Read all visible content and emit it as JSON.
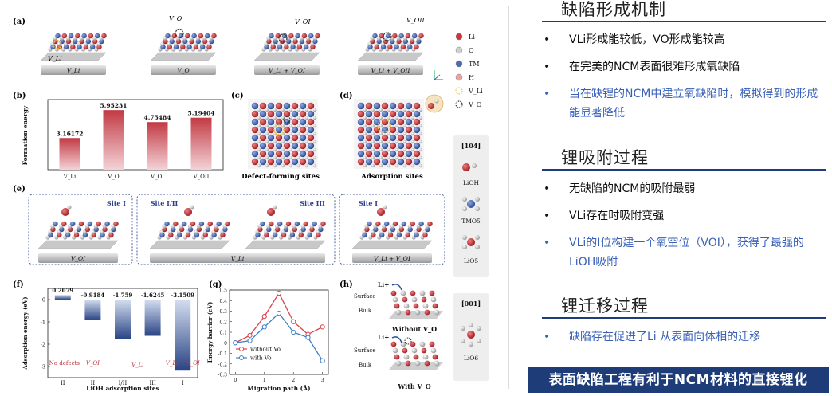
{
  "figure": {
    "panel_labels": [
      "(a)",
      "(b)",
      "(c)",
      "(d)",
      "(e)",
      "(f)",
      "(g)",
      "(h)"
    ],
    "panel_a": {
      "labels": [
        "V_Li",
        "V_O",
        "V_Li + V_OI",
        "V_Li + V_OII"
      ],
      "annotations": [
        "V_Li",
        "V_O",
        "V_OI",
        "V_OII"
      ]
    },
    "legend": [
      {
        "label": "Li",
        "color": "#c8353b"
      },
      {
        "label": "O",
        "color": "#cfcfcf"
      },
      {
        "label": "TM",
        "color": "#4a6bb5"
      },
      {
        "label": "H",
        "color": "#f0a0a0"
      },
      {
        "label": "V_Li",
        "color": "#f0c040"
      },
      {
        "label": "V_O",
        "color": "#333333"
      }
    ],
    "panel_c_title": "Defect-forming sites",
    "panel_d_title": "Adsorption sites",
    "panel_e": {
      "sites": [
        "Site I",
        "Site I/II",
        "Site III",
        "Site I"
      ],
      "labels": [
        "V_OI",
        "V_Li",
        "V_Li + V_OI"
      ]
    },
    "side_labels": [
      "[104]",
      "LiOH",
      "TMO5",
      "LiO5",
      "[001]",
      "LiO6"
    ],
    "panel_h": {
      "surface": "Surface",
      "bulk": "Bulk",
      "without": "Without V_O",
      "with": "With V_O",
      "li": "Li+"
    }
  },
  "chart_data": [
    {
      "type": "bar",
      "panel": "b",
      "categories": [
        "V_Li",
        "V_O",
        "V_OI",
        "V_OII"
      ],
      "values": [
        3.16172,
        5.95231,
        4.75484,
        5.19404
      ],
      "value_labels": [
        "3.16172",
        "5.95231",
        "4.75484",
        "5.19404"
      ],
      "ylabel": "Formation energy",
      "ylim": [
        0,
        7
      ],
      "color": "#b8303a"
    },
    {
      "type": "bar",
      "panel": "f",
      "categories": [
        "II",
        "II",
        "I/II",
        "III",
        "I"
      ],
      "values": [
        0.2079,
        -0.9184,
        -1.759,
        -1.6245,
        -3.1509
      ],
      "value_labels": [
        "0.2079",
        "-0.9184",
        "-1.759",
        "-1.6245",
        "-3.1509"
      ],
      "group_labels": [
        "No defects",
        "V_OI",
        "V_Li",
        "V_Li + V_OI"
      ],
      "xlabel": "LiOH adsorption sites",
      "ylabel": "Adsorption energy (eV)",
      "ylim": [
        -3.5,
        0.5
      ],
      "color": "#2f4f8f"
    },
    {
      "type": "line",
      "panel": "g",
      "xlabel": "Migration path (Å)",
      "ylabel": "Energy barrier (eV)",
      "xlim": [
        -0.2,
        3.2
      ],
      "ylim": [
        -0.3,
        0.5
      ],
      "series": [
        {
          "name": "without Vo",
          "color": "#d9434b",
          "x": [
            0,
            0.5,
            1,
            1.5,
            2,
            2.5,
            3
          ],
          "y": [
            0.0,
            0.07,
            0.25,
            0.47,
            0.2,
            0.08,
            0.15
          ]
        },
        {
          "name": "with Vo",
          "color": "#3d7fc8",
          "x": [
            0,
            0.5,
            1,
            1.5,
            2,
            2.5,
            3
          ],
          "y": [
            0.0,
            0.02,
            0.15,
            0.28,
            0.1,
            0.05,
            -0.17
          ]
        }
      ]
    }
  ],
  "sections": [
    {
      "title": "缺陷形成机制",
      "bullets": [
        {
          "text": "VLi形成能较低，VO形成能较高",
          "blue": false
        },
        {
          "text": "在完美的NCM表面很难形成氧缺陷",
          "blue": false
        },
        {
          "text": "当在缺锂的NCM中建立氧缺陷时，模拟得到的形成能显著降低",
          "blue": true
        }
      ]
    },
    {
      "title": "锂吸附过程",
      "bullets": [
        {
          "text": "无缺陷的NCM的吸附最弱",
          "blue": false
        },
        {
          "text": "VLi存在时吸附变强",
          "blue": false
        },
        {
          "text": "VLi的Ⅰ位构建一个氧空位（VOⅠ），获得了最强的LiOH吸附",
          "blue": true
        }
      ]
    },
    {
      "title": "锂迁移过程",
      "bullets": [
        {
          "text": "缺陷存在促进了Li 从表面向体相的迁移",
          "blue": true
        }
      ]
    }
  ],
  "bullet_symbol": "•",
  "banner": "表面缺陷工程有利于NCM材料的直接锂化"
}
